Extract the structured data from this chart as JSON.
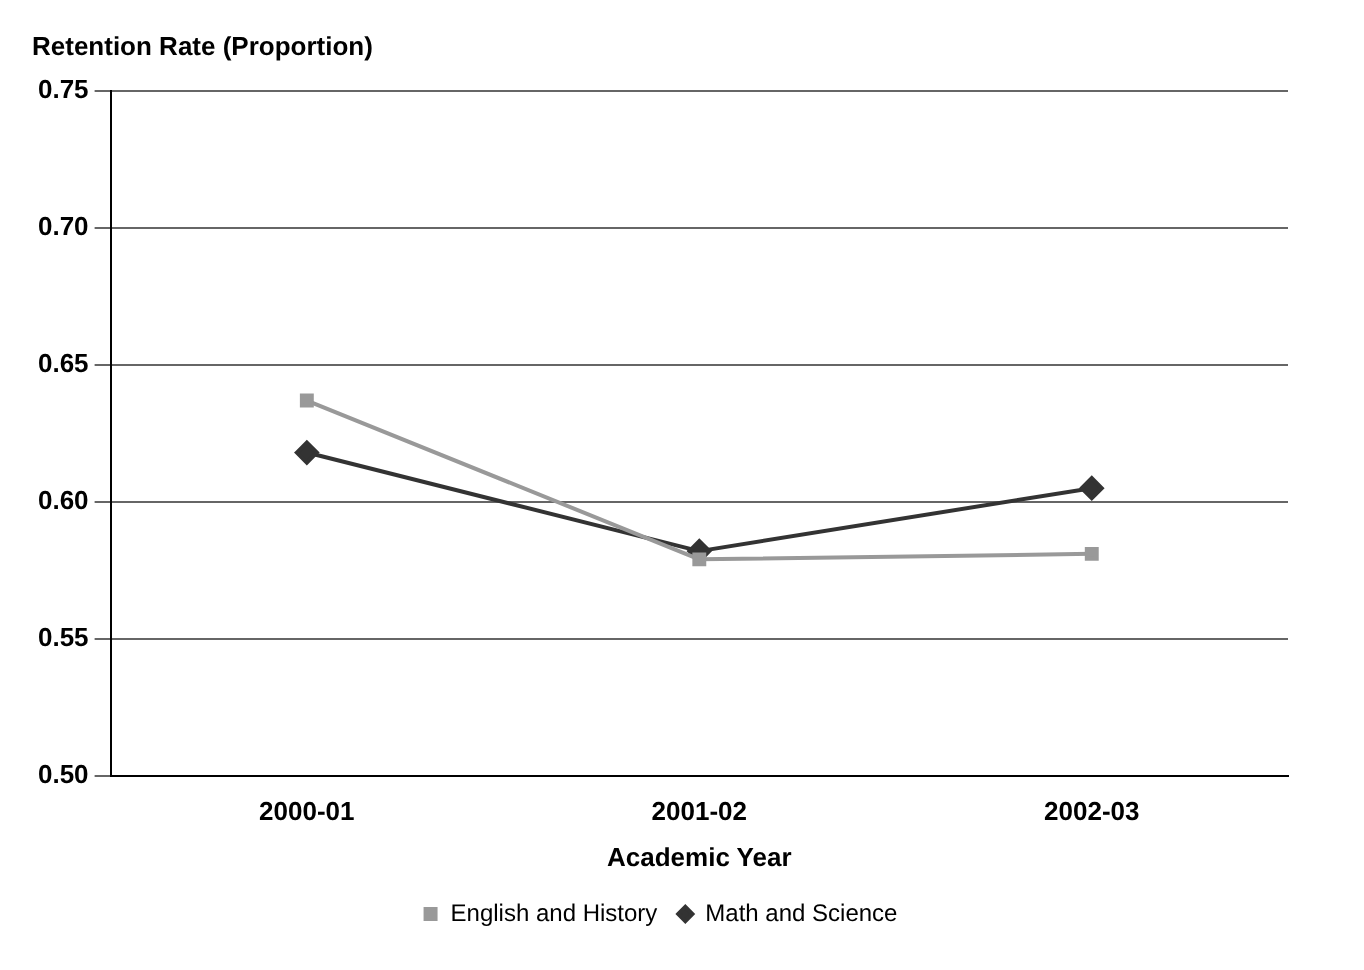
{
  "chart_data": {
    "type": "line",
    "ylabel": "Retention Rate (Proportion)",
    "xlabel": "Academic Year",
    "categories": [
      "2000-01",
      "2001-02",
      "2002-03"
    ],
    "series": [
      {
        "name": "Math and Science",
        "color": "#333333",
        "marker": "diamond",
        "values": [
          0.618,
          0.582,
          0.605
        ]
      },
      {
        "name": "English and History",
        "color": "#999999",
        "marker": "square",
        "values": [
          0.637,
          0.579,
          0.581
        ]
      }
    ],
    "ylim": [
      0.5,
      0.75
    ],
    "yticks": [
      {
        "value": 0.5,
        "label": "0.50"
      },
      {
        "value": 0.55,
        "label": "0.55"
      },
      {
        "value": 0.6,
        "label": "0.60"
      },
      {
        "value": 0.65,
        "label": "0.65"
      },
      {
        "value": 0.7,
        "label": "0.70"
      },
      {
        "value": 0.75,
        "label": "0.75"
      }
    ],
    "grid": "y",
    "legend": "bottom",
    "line_style": "solid"
  }
}
